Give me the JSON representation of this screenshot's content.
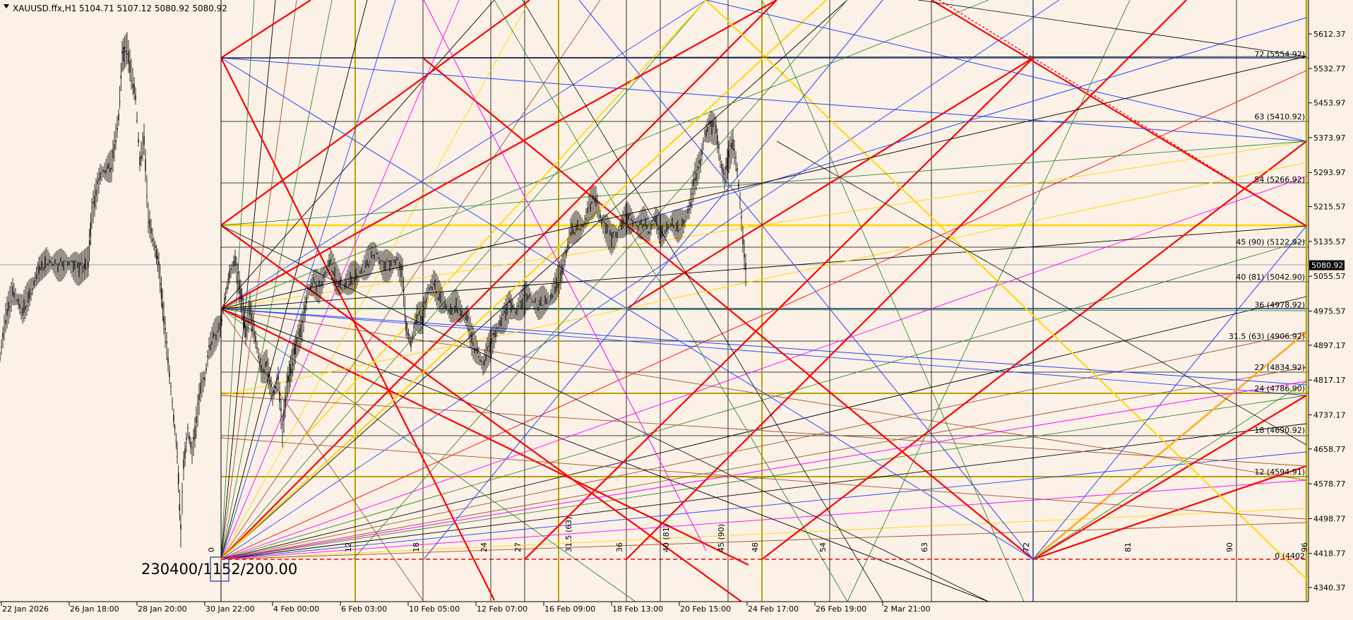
{
  "header": {
    "symbol": "XAUUSD.ffx,H1",
    "ohlc": "5104.71 5107.12 5080.92 5080.92"
  },
  "overlay_text": "230400/1152/200.00",
  "price_marker": "5080.92",
  "colors": {
    "background": "#fcf1e6",
    "red": "#ff0000",
    "gold": "#ffd700",
    "olive": "#b8a000",
    "navy": "#1a3a8a",
    "blue": "#2244ff",
    "green": "#2e8b2e",
    "magenta": "#ff00ff",
    "brown": "#a0522d",
    "black": "#000000"
  },
  "chart_data": {
    "type": "candlestick",
    "instrument": "XAUUSD.ffx",
    "timeframe": "H1",
    "y_ticks": [
      "5612.37",
      "5532.77",
      "5453.97",
      "5373.97",
      "5293.97",
      "5215.57",
      "5135.57",
      "5055.57",
      "4975.57",
      "4897.17",
      "4817.17",
      "4737.17",
      "4658.77",
      "4578.77",
      "4498.77",
      "4418.77",
      "4340.37"
    ],
    "y_tick_values": [
      5612.37,
      5532.77,
      5453.97,
      5373.97,
      5293.97,
      5215.57,
      5135.57,
      5055.57,
      4975.57,
      4897.17,
      4817.17,
      4737.17,
      4658.77,
      4578.77,
      4498.77,
      4418.77,
      4340.37
    ],
    "ylim": [
      4325,
      5700
    ],
    "x_ticks": [
      "22 Jan 2026",
      "26 Jan 18:00",
      "28 Jan 20:00",
      "30 Jan 22:00",
      "4 Feb 00:00",
      "6 Feb 03:00",
      "10 Feb 05:00",
      "12 Feb 07:00",
      "16 Feb 09:00",
      "18 Feb 13:00",
      "20 Feb 15:00",
      "24 Feb 17:00",
      "26 Feb 19:00",
      "2 Mar 21:00"
    ],
    "level_labels": [
      {
        "label": "72 (5554.92)",
        "price": 5554.92
      },
      {
        "label": "63 (5410.92)",
        "price": 5410.92
      },
      {
        "label": "54 (5266.92)",
        "price": 5266.92
      },
      {
        "label": "45 (90) (5122.92)",
        "price": 5122.92
      },
      {
        "label": "40 (81) (5042.90)",
        "price": 5042.9
      },
      {
        "label": "36 (4978.92)",
        "price": 4978.92
      },
      {
        "label": "31.5 (63) (4906.92)",
        "price": 4906.92
      },
      {
        "label": "27 (4834.92)",
        "price": 4834.92
      },
      {
        "label": "24 (4786.90)",
        "price": 4786.9
      },
      {
        "label": "18 (4690.92)",
        "price": 4690.92
      },
      {
        "label": "12 (4594.91)",
        "price": 4594.91
      },
      {
        "label": "0 (4402",
        "price": 4402
      }
    ],
    "time_labels": [
      "0",
      "12",
      "18",
      "24",
      "27",
      "31.5 (63)",
      "36",
      "40 (81)",
      "45 (90)",
      "48",
      "54",
      "63",
      "72",
      "81",
      "90",
      "96"
    ],
    "last_price": 5080.92,
    "price_path": [
      [
        0,
        4870
      ],
      [
        8,
        4960
      ],
      [
        18,
        5020
      ],
      [
        32,
        4980
      ],
      [
        48,
        5040
      ],
      [
        55,
        5070
      ],
      [
        66,
        5090
      ],
      [
        82,
        5080
      ],
      [
        98,
        5085
      ],
      [
        112,
        5070
      ],
      [
        125,
        5090
      ],
      [
        130,
        5200
      ],
      [
        142,
        5290
      ],
      [
        158,
        5310
      ],
      [
        168,
        5420
      ],
      [
        173,
        5560
      ],
      [
        180,
        5580
      ],
      [
        186,
        5520
      ],
      [
        192,
        5470
      ],
      [
        198,
        5320
      ],
      [
        204,
        5370
      ],
      [
        210,
        5190
      ],
      [
        218,
        5130
      ],
      [
        225,
        5080
      ],
      [
        232,
        4960
      ],
      [
        240,
        4830
      ],
      [
        246,
        4730
      ],
      [
        251,
        4650
      ],
      [
        256,
        4470
      ],
      [
        260,
        4620
      ],
      [
        266,
        4700
      ],
      [
        272,
        4650
      ],
      [
        278,
        4720
      ],
      [
        284,
        4800
      ],
      [
        290,
        4820
      ],
      [
        296,
        4890
      ],
      [
        304,
        4920
      ],
      [
        312,
        4940
      ],
      [
        318,
        5000
      ],
      [
        325,
        5060
      ],
      [
        333,
        5090
      ],
      [
        341,
        5010
      ],
      [
        348,
        4930
      ],
      [
        354,
        4980
      ],
      [
        362,
        4910
      ],
      [
        370,
        4840
      ],
      [
        378,
        4850
      ],
      [
        386,
        4780
      ],
      [
        394,
        4820
      ],
      [
        400,
        4700
      ],
      [
        406,
        4800
      ],
      [
        413,
        4850
      ],
      [
        420,
        4900
      ],
      [
        428,
        4940
      ],
      [
        436,
        5020
      ],
      [
        444,
        5040
      ],
      [
        452,
        5030
      ],
      [
        460,
        5060
      ],
      [
        468,
        5090
      ],
      [
        476,
        5050
      ],
      [
        486,
        5030
      ],
      [
        496,
        5050
      ],
      [
        506,
        5060
      ],
      [
        514,
        5070
      ],
      [
        522,
        5090
      ],
      [
        532,
        5110
      ],
      [
        542,
        5080
      ],
      [
        552,
        5080
      ],
      [
        562,
        5090
      ],
      [
        570,
        5060
      ],
      [
        575,
        4940
      ],
      [
        582,
        4900
      ],
      [
        590,
        4960
      ],
      [
        598,
        4960
      ],
      [
        606,
        5020
      ],
      [
        614,
        5040
      ],
      [
        622,
        5010
      ],
      [
        630,
        4990
      ],
      [
        638,
        4980
      ],
      [
        646,
        4990
      ],
      [
        654,
        4970
      ],
      [
        662,
        4960
      ],
      [
        668,
        4910
      ],
      [
        676,
        4880
      ],
      [
        684,
        4850
      ],
      [
        690,
        4880
      ],
      [
        698,
        4910
      ],
      [
        706,
        4940
      ],
      [
        714,
        4960
      ],
      [
        722,
        4990
      ],
      [
        730,
        4970
      ],
      [
        738,
        4990
      ],
      [
        746,
        5010
      ],
      [
        754,
        5000
      ],
      [
        762,
        4990
      ],
      [
        770,
        5000
      ],
      [
        778,
        5000
      ],
      [
        786,
        5030
      ],
      [
        794,
        5060
      ],
      [
        802,
        5110
      ],
      [
        808,
        5160
      ],
      [
        816,
        5170
      ],
      [
        826,
        5170
      ],
      [
        836,
        5220
      ],
      [
        844,
        5230
      ],
      [
        852,
        5180
      ],
      [
        860,
        5160
      ],
      [
        866,
        5140
      ],
      [
        874,
        5150
      ],
      [
        880,
        5170
      ],
      [
        888,
        5190
      ],
      [
        896,
        5180
      ],
      [
        904,
        5170
      ],
      [
        912,
        5180
      ],
      [
        920,
        5160
      ],
      [
        928,
        5190
      ],
      [
        936,
        5160
      ],
      [
        944,
        5170
      ],
      [
        952,
        5180
      ],
      [
        960,
        5170
      ],
      [
        968,
        5180
      ],
      [
        976,
        5210
      ],
      [
        984,
        5280
      ],
      [
        992,
        5320
      ],
      [
        998,
        5380
      ],
      [
        1006,
        5400
      ],
      [
        1014,
        5390
      ],
      [
        1020,
        5320
      ],
      [
        1026,
        5280
      ],
      [
        1032,
        5330
      ],
      [
        1038,
        5360
      ],
      [
        1044,
        5300
      ],
      [
        1048,
        5230
      ],
      [
        1052,
        5140
      ],
      [
        1056,
        5070
      ],
      [
        1058,
        5080
      ]
    ]
  }
}
